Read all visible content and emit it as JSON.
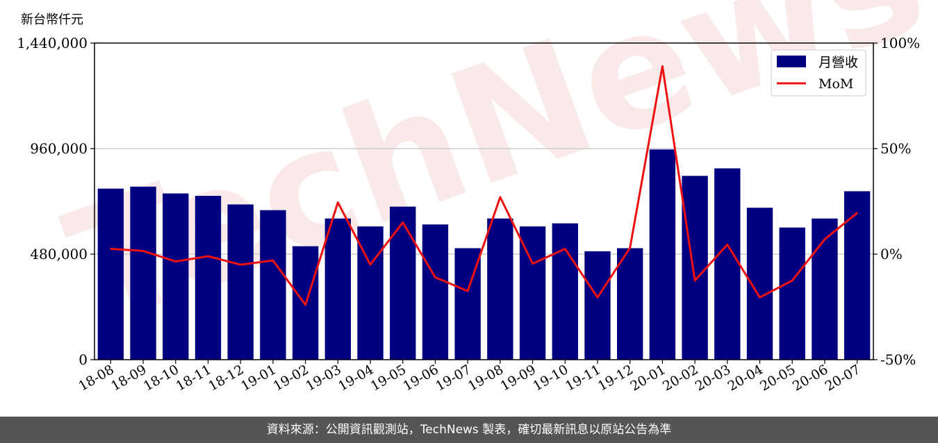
{
  "unit_label": "新台幣仟元",
  "watermark": "TechNews",
  "footer": "資料來源：公開資訊觀測站，TechNews 製表，確切最新訊息以原站公告為準",
  "chart_data": {
    "type": "bar",
    "categories": [
      "18-08",
      "18-09",
      "18-10",
      "18-11",
      "18-12",
      "19-01",
      "19-02",
      "19-03",
      "19-04",
      "19-05",
      "19-06",
      "19-07",
      "19-08",
      "19-09",
      "19-10",
      "19-11",
      "19-12",
      "20-01",
      "20-02",
      "20-03",
      "20-04",
      "20-05",
      "20-06",
      "20-07"
    ],
    "series": [
      {
        "name": "月營收",
        "type": "bar",
        "axis": "left",
        "color": "#000080",
        "values": [
          778000,
          787000,
          756000,
          745000,
          706000,
          680000,
          516000,
          642000,
          606000,
          696000,
          615000,
          507000,
          642000,
          606000,
          620000,
          493000,
          507000,
          956000,
          836000,
          870000,
          691000,
          601000,
          642000,
          766000
        ]
      },
      {
        "name": "MoM",
        "type": "line",
        "axis": "right",
        "color": "#ee1111",
        "values": [
          2.5,
          1.5,
          -3.5,
          -1.0,
          -5.0,
          -3.0,
          -24,
          24.5,
          -5.0,
          15.0,
          -11.0,
          -17.5,
          27.0,
          -4.5,
          2.5,
          -20.5,
          3.0,
          89.0,
          -12.5,
          4.5,
          -20.5,
          -12.5,
          7.0,
          19.5
        ]
      }
    ],
    "y_left": {
      "min": 0,
      "max": 1440000,
      "ticks": [
        "0",
        "480,000",
        "960,000",
        "1,440,000"
      ],
      "tick_values": [
        0,
        480000,
        960000,
        1440000
      ]
    },
    "y_right": {
      "min": -50,
      "max": 100,
      "ticks": [
        "-50%",
        "0%",
        "50%",
        "100%"
      ],
      "tick_values": [
        -50,
        0,
        50,
        100
      ]
    },
    "grid": "horizontal",
    "legend": "top-right"
  }
}
